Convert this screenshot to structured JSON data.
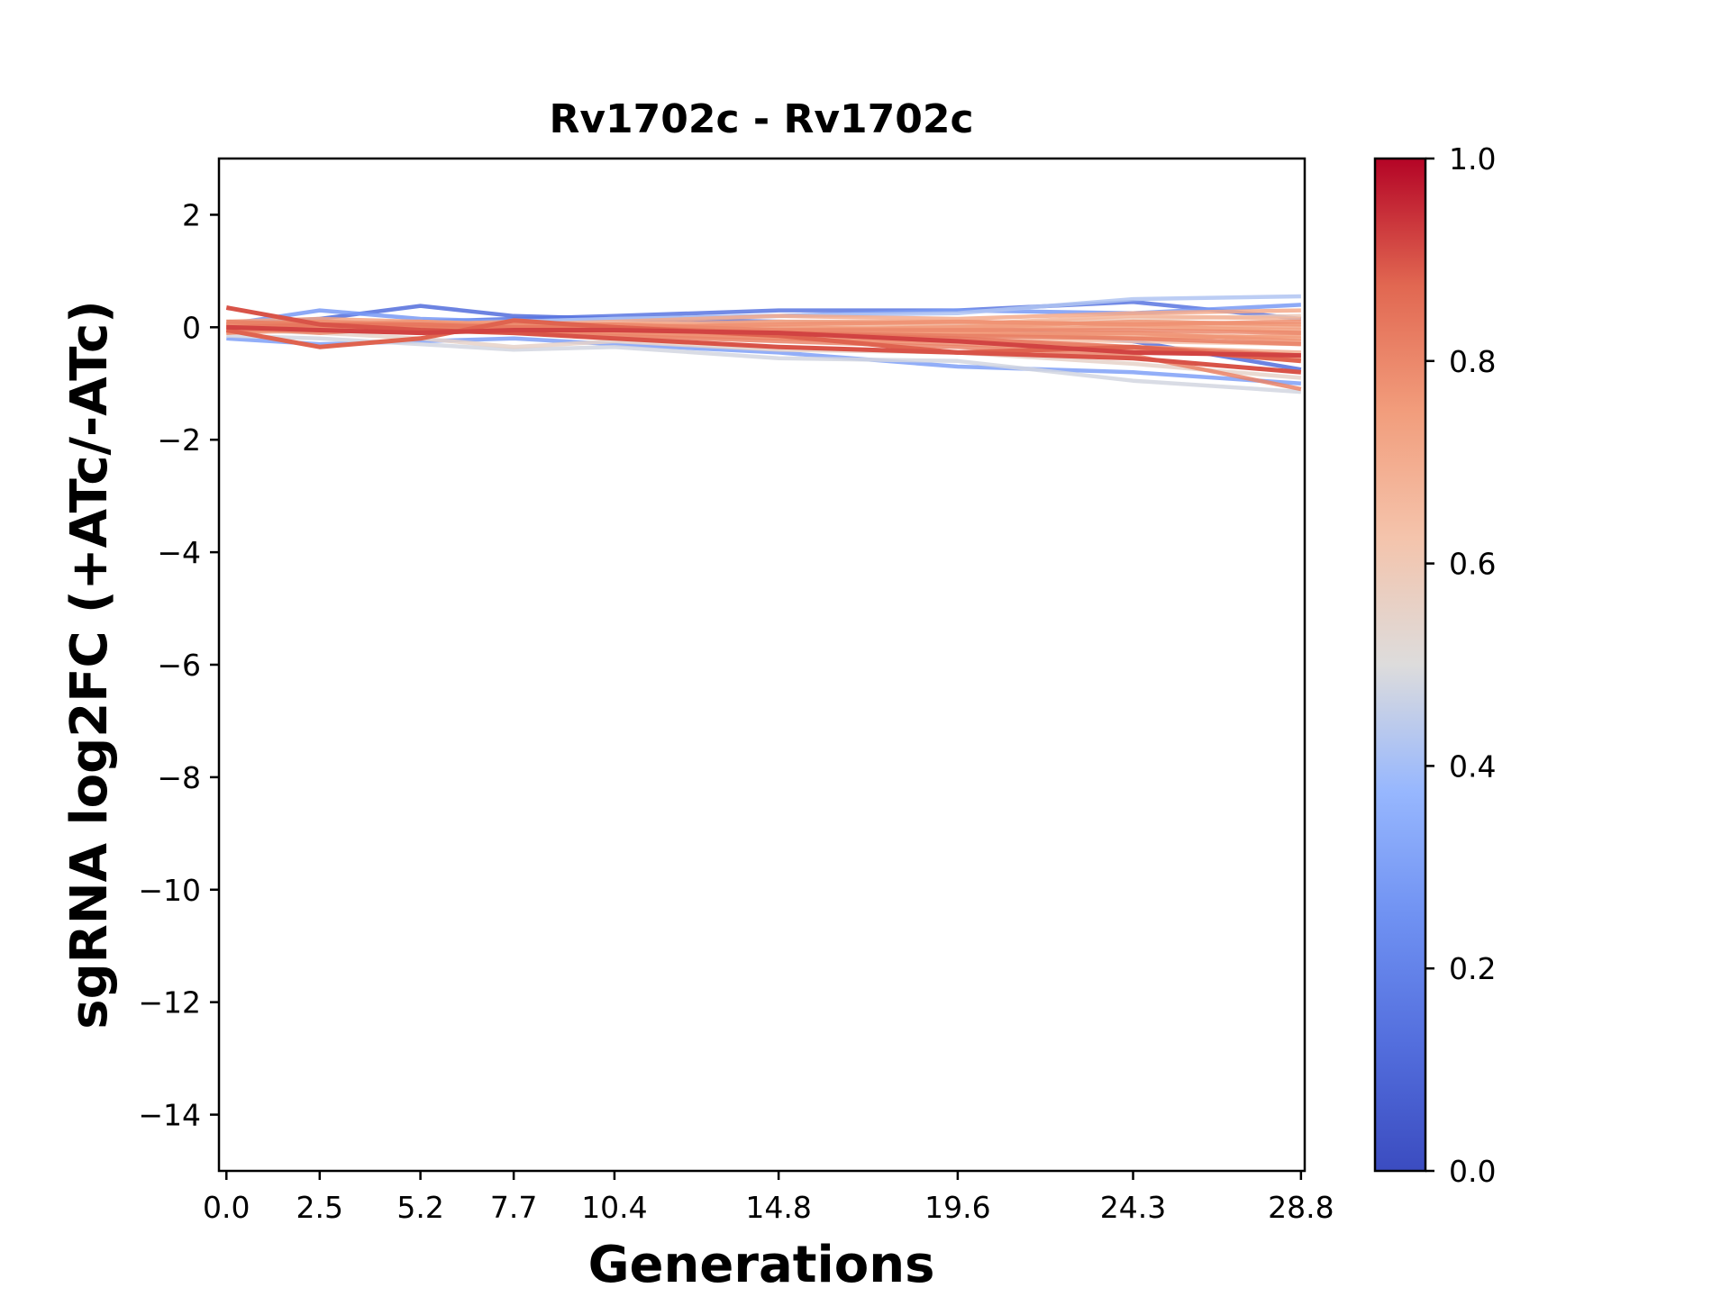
{
  "chart_data": {
    "type": "line",
    "title": "Rv1702c - Rv1702c",
    "xlabel": "Generations",
    "ylabel": "sgRNA log2FC (+ATc/-ATc)",
    "x": [
      0.0,
      2.5,
      5.2,
      7.7,
      10.4,
      14.8,
      19.6,
      24.3,
      28.8
    ],
    "x_tick_labels": [
      "0.0",
      "2.5",
      "5.2",
      "7.7",
      "10.4",
      "14.8",
      "19.6",
      "24.3",
      "28.8"
    ],
    "xlim": [
      -0.2,
      28.9
    ],
    "ylim": [
      -15,
      3
    ],
    "y_ticks": [
      2,
      0,
      -2,
      -4,
      -6,
      -8,
      -10,
      -12,
      -14
    ],
    "y_tick_labels": [
      "2",
      "0",
      "−2",
      "−4",
      "−6",
      "−8",
      "−10",
      "−12",
      "−14"
    ],
    "grid": false,
    "colorbar": {
      "colormap": "coolwarm",
      "range": [
        0.0,
        1.0
      ],
      "ticks": [
        0.0,
        0.2,
        0.4,
        0.6,
        0.8,
        1.0
      ],
      "tick_labels": [
        "0.0",
        "0.2",
        "0.4",
        "0.6",
        "0.8",
        "1.0"
      ]
    },
    "series": [
      {
        "color_value": 0.12,
        "values": [
          0.05,
          0.15,
          0.38,
          0.2,
          0.15,
          0.1,
          0.05,
          -0.25,
          -0.75
        ]
      },
      {
        "color_value": 0.15,
        "values": [
          -0.1,
          0.05,
          0.1,
          0.15,
          0.2,
          0.3,
          0.3,
          0.45,
          0.15
        ]
      },
      {
        "color_value": 0.28,
        "values": [
          0.05,
          0.3,
          0.15,
          0.1,
          0.15,
          0.2,
          0.3,
          0.25,
          0.4
        ]
      },
      {
        "color_value": 0.3,
        "values": [
          -0.2,
          -0.3,
          -0.25,
          -0.2,
          -0.3,
          -0.45,
          -0.7,
          -0.8,
          -1.0
        ]
      },
      {
        "color_value": 0.42,
        "values": [
          0.0,
          0.1,
          0.05,
          0.1,
          0.15,
          0.2,
          0.25,
          0.5,
          0.55
        ]
      },
      {
        "color_value": 0.48,
        "values": [
          -0.15,
          -0.2,
          -0.3,
          -0.4,
          -0.35,
          -0.55,
          -0.6,
          -0.95,
          -1.15
        ]
      },
      {
        "color_value": 0.55,
        "values": [
          -0.05,
          -0.1,
          -0.2,
          -0.35,
          -0.25,
          -0.4,
          -0.45,
          -0.65,
          -0.9
        ]
      },
      {
        "color_value": 0.58,
        "values": [
          0.1,
          0.05,
          0.0,
          0.05,
          0.0,
          -0.05,
          0.0,
          0.1,
          0.05
        ]
      },
      {
        "color_value": 0.6,
        "values": [
          0.0,
          0.05,
          0.1,
          0.0,
          -0.05,
          0.0,
          0.05,
          0.15,
          0.2
        ]
      },
      {
        "color_value": 0.63,
        "values": [
          -0.1,
          0.0,
          0.05,
          -0.05,
          -0.1,
          -0.15,
          -0.2,
          -0.25,
          -0.3
        ]
      },
      {
        "color_value": 0.65,
        "values": [
          0.05,
          0.1,
          0.0,
          -0.05,
          0.0,
          0.05,
          0.0,
          0.05,
          -0.1
        ]
      },
      {
        "color_value": 0.67,
        "values": [
          0.0,
          -0.05,
          0.05,
          0.0,
          -0.05,
          0.1,
          0.05,
          0.2,
          0.15
        ]
      },
      {
        "color_value": 0.68,
        "values": [
          -0.05,
          0.05,
          0.1,
          0.05,
          0.0,
          -0.1,
          -0.05,
          -0.1,
          -0.2
        ]
      },
      {
        "color_value": 0.7,
        "values": [
          0.05,
          0.0,
          -0.05,
          -0.1,
          -0.15,
          -0.2,
          -0.25,
          -0.35,
          -0.45
        ]
      },
      {
        "color_value": 0.71,
        "values": [
          0.0,
          0.1,
          0.05,
          0.05,
          0.1,
          0.2,
          0.15,
          0.25,
          0.3
        ]
      },
      {
        "color_value": 0.72,
        "values": [
          -0.1,
          -0.05,
          0.0,
          -0.05,
          -0.1,
          -0.05,
          -0.1,
          -0.15,
          -0.2
        ]
      },
      {
        "color_value": 0.73,
        "values": [
          0.1,
          0.15,
          0.1,
          0.05,
          0.05,
          0.1,
          0.1,
          0.05,
          0.0
        ]
      },
      {
        "color_value": 0.74,
        "values": [
          0.0,
          0.0,
          -0.05,
          0.0,
          0.05,
          0.0,
          -0.05,
          0.0,
          -0.05
        ]
      },
      {
        "color_value": 0.75,
        "values": [
          -0.05,
          0.05,
          0.0,
          -0.1,
          -0.05,
          -0.15,
          -0.1,
          -0.2,
          -0.15
        ]
      },
      {
        "color_value": 0.76,
        "values": [
          0.05,
          -0.05,
          0.05,
          0.1,
          0.0,
          -0.05,
          0.0,
          0.1,
          0.05
        ]
      },
      {
        "color_value": 0.77,
        "values": [
          0.0,
          0.05,
          0.1,
          0.0,
          -0.05,
          -0.1,
          -0.15,
          -0.1,
          -0.25
        ]
      },
      {
        "color_value": 0.78,
        "values": [
          -0.1,
          0.0,
          -0.05,
          -0.05,
          0.0,
          0.05,
          0.1,
          0.05,
          0.1
        ]
      },
      {
        "color_value": 0.79,
        "values": [
          0.05,
          0.1,
          0.05,
          0.0,
          -0.1,
          -0.2,
          -0.3,
          -0.4,
          -0.55
        ]
      },
      {
        "color_value": 0.8,
        "values": [
          0.0,
          -0.1,
          0.0,
          0.05,
          0.05,
          -0.05,
          -0.05,
          -0.05,
          -0.1
        ]
      },
      {
        "color_value": 0.81,
        "values": [
          -0.05,
          0.0,
          0.0,
          -0.1,
          -0.15,
          -0.25,
          -0.35,
          -0.5,
          -1.1
        ]
      },
      {
        "color_value": 0.82,
        "values": [
          0.1,
          0.05,
          0.0,
          -0.05,
          -0.05,
          -0.1,
          -0.15,
          -0.2,
          -0.3
        ]
      },
      {
        "color_value": 0.84,
        "values": [
          0.0,
          0.05,
          0.05,
          0.0,
          0.0,
          -0.1,
          -0.2,
          -0.35,
          -0.5
        ]
      },
      {
        "color_value": 0.88,
        "values": [
          -0.05,
          -0.35,
          -0.2,
          0.12,
          0.0,
          -0.15,
          -0.45,
          -0.35,
          -0.6
        ]
      },
      {
        "color_value": 0.9,
        "values": [
          0.35,
          0.05,
          -0.05,
          -0.1,
          -0.2,
          -0.35,
          -0.45,
          -0.55,
          -0.8
        ]
      },
      {
        "color_value": 0.92,
        "values": [
          0.0,
          -0.05,
          -0.1,
          -0.05,
          -0.05,
          -0.1,
          -0.25,
          -0.45,
          -0.5
        ]
      }
    ]
  }
}
